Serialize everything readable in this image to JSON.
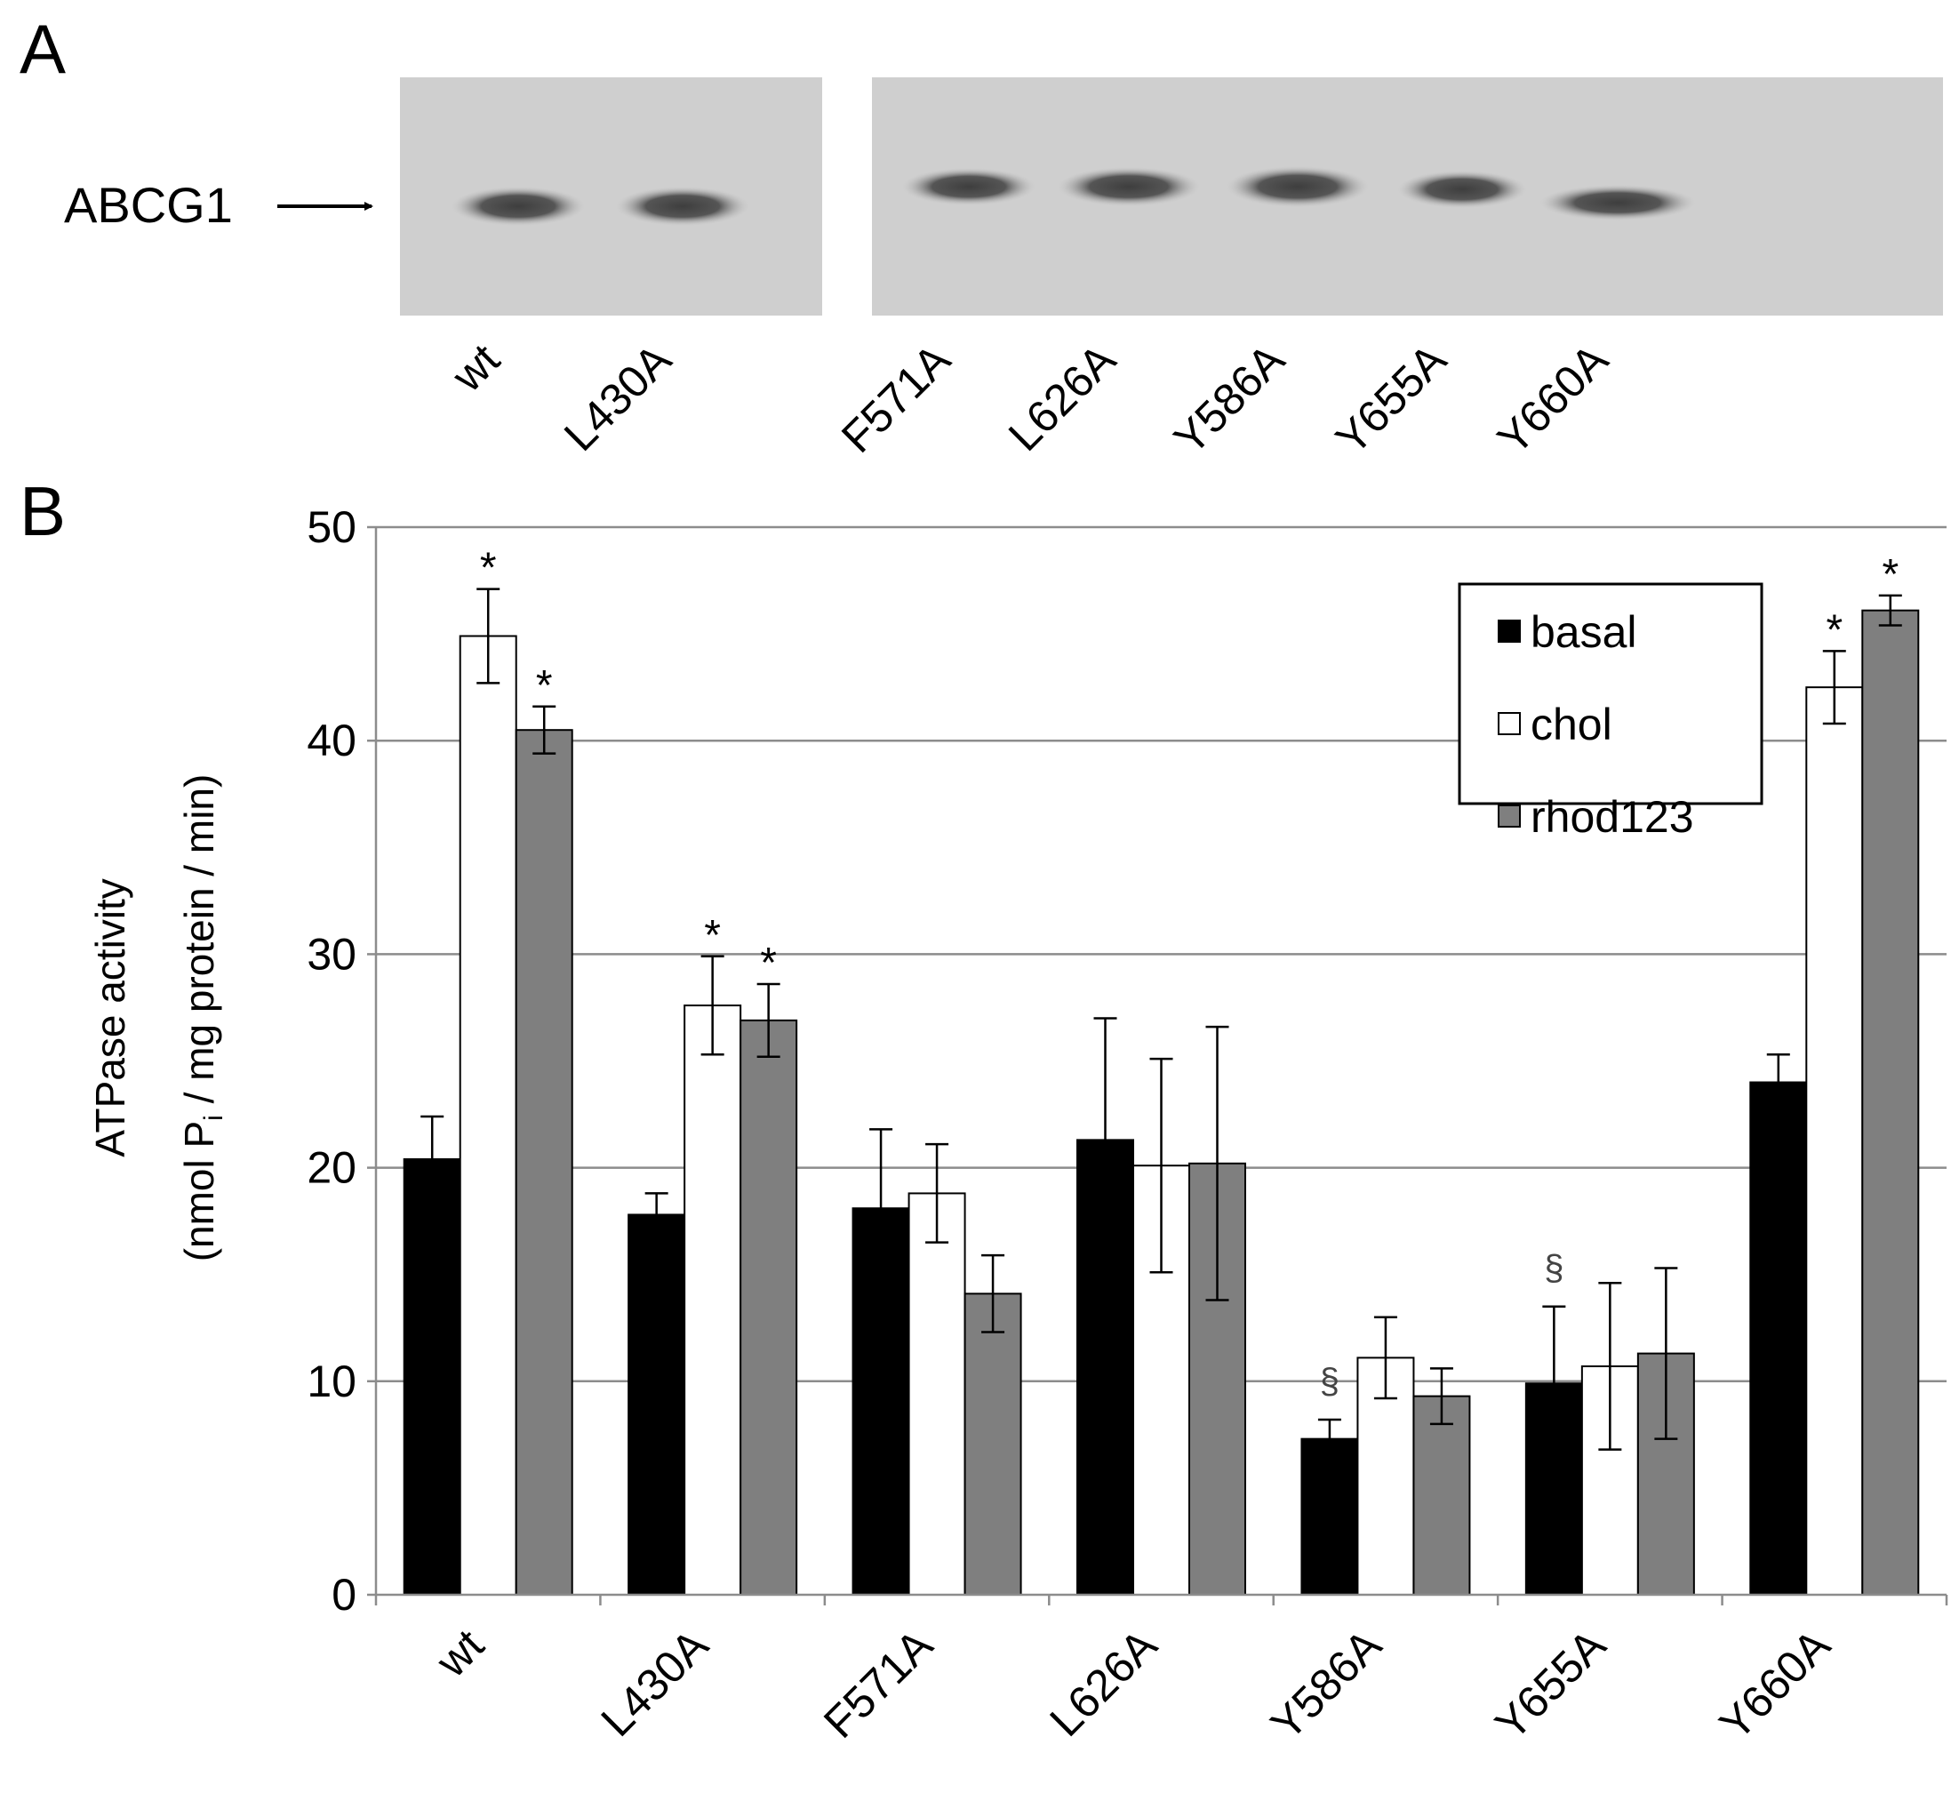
{
  "panel_a": {
    "label": "A",
    "band_label": "ABCG1",
    "lanes": [
      "wt",
      "L430A",
      "F571A",
      "L626A",
      "Y586A",
      "Y655A",
      "Y660A"
    ]
  },
  "panel_b": {
    "label": "B",
    "ylabel_line1": "ATPase activity",
    "ylabel_line2_pre": "(nmol P",
    "ylabel_line2_sub": "i",
    "ylabel_line2_post": " / mg protein / min)"
  },
  "chart_data": {
    "type": "bar",
    "categories": [
      "wt",
      "L430A",
      "F571A",
      "L626A",
      "Y586A",
      "Y655A",
      "Y660A"
    ],
    "ylim": [
      0,
      50
    ],
    "yticks": [
      0,
      10,
      20,
      30,
      40,
      50
    ],
    "grid": true,
    "legend_position": "top-right",
    "series": [
      {
        "name": "basal",
        "color": "#000000",
        "values": [
          20.4,
          17.8,
          18.1,
          21.3,
          7.3,
          9.9,
          24.0
        ],
        "errors": [
          2.0,
          1.0,
          3.7,
          5.7,
          0.9,
          3.6,
          1.3
        ],
        "marks": [
          "",
          "",
          "",
          "",
          "§",
          "§",
          ""
        ]
      },
      {
        "name": "chol",
        "color": "#ffffff",
        "values": [
          44.9,
          27.6,
          18.8,
          20.1,
          11.1,
          10.7,
          42.5
        ],
        "errors": [
          2.2,
          2.3,
          2.3,
          5.0,
          1.9,
          3.9,
          1.7
        ],
        "marks": [
          "*",
          "*",
          "",
          "",
          "",
          "",
          "*"
        ]
      },
      {
        "name": "rhod123",
        "color": "#7f7f7f",
        "values": [
          40.5,
          26.9,
          14.1,
          20.2,
          9.3,
          11.3,
          46.1
        ],
        "errors": [
          1.1,
          1.7,
          1.8,
          6.4,
          1.3,
          4.0,
          0.7
        ],
        "marks": [
          "*",
          "*",
          "",
          "",
          "",
          "",
          "*"
        ]
      }
    ]
  }
}
